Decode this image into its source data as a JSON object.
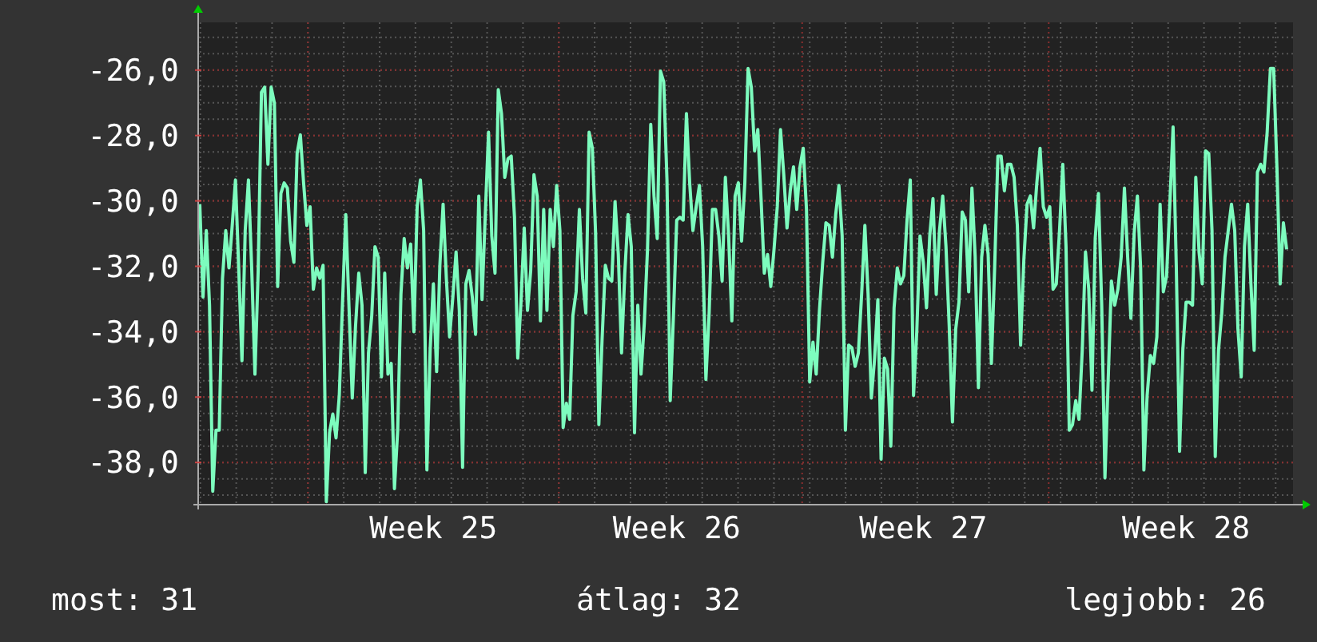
{
  "chart_data": {
    "type": "line",
    "ylim": [
      -39.29,
      -24.54
    ],
    "categories": [
      null,
      null,
      null,
      null,
      null,
      null,
      null,
      null,
      null,
      null,
      null,
      null,
      null,
      null,
      null,
      null,
      null,
      null,
      null,
      null,
      null,
      null,
      null,
      null,
      null,
      null,
      null,
      null,
      null,
      null,
      null,
      null,
      null,
      null,
      null,
      null,
      null,
      null,
      null,
      null,
      null,
      null,
      null,
      null,
      null,
      null,
      null,
      null,
      null,
      null,
      null,
      null,
      null,
      null,
      null,
      null,
      null,
      null,
      null,
      null,
      null,
      null,
      null,
      null,
      null,
      null,
      null,
      null,
      null,
      null,
      null,
      null,
      "Week 25",
      null,
      null,
      null,
      null,
      null,
      null,
      null,
      null,
      null,
      null,
      null,
      null,
      null,
      null,
      null,
      null,
      null,
      null,
      null,
      null,
      null,
      null,
      null,
      null,
      null,
      null,
      null,
      null,
      null,
      null,
      null,
      null,
      null,
      null,
      null,
      null,
      null,
      null,
      null,
      null,
      null,
      null,
      null,
      null,
      null,
      null,
      null,
      null,
      null,
      null,
      null,
      null,
      null,
      null,
      null,
      null,
      null,
      null,
      null,
      null,
      null,
      null,
      null,
      null,
      null,
      null,
      null,
      null,
      null,
      null,
      null,
      null,
      null,
      null,
      "Week 26",
      null,
      null,
      null,
      null,
      null,
      null,
      null,
      null,
      null,
      null,
      null,
      null,
      null,
      null,
      null,
      null,
      null,
      null,
      null,
      null,
      null,
      null,
      null,
      null,
      null,
      null,
      null,
      null,
      null,
      null,
      null,
      null,
      null,
      null,
      null,
      null,
      null,
      null,
      null,
      null,
      null,
      null,
      null,
      null,
      null,
      null,
      null,
      null,
      null,
      null,
      null,
      null,
      null,
      null,
      null,
      null,
      null,
      null,
      null,
      null,
      null,
      null,
      null,
      null,
      null,
      null,
      null,
      null,
      null,
      null,
      null,
      null,
      null,
      null,
      null,
      "Week 27",
      null,
      null,
      null,
      null,
      null,
      null,
      null,
      null,
      null,
      null,
      null,
      null,
      null,
      null,
      null,
      null,
      null,
      null,
      null,
      null,
      null,
      null,
      null,
      null,
      null,
      null,
      null,
      null,
      null,
      null,
      null,
      null,
      null,
      null,
      null,
      null,
      null,
      null,
      null,
      null,
      null,
      null,
      null,
      null,
      null,
      null,
      null,
      null,
      null,
      null,
      null,
      null,
      null,
      null,
      null,
      null,
      null,
      null,
      null,
      null,
      null,
      null,
      null,
      null,
      null,
      null,
      null,
      null,
      null,
      null,
      null,
      null,
      null,
      null,
      null,
      null,
      null,
      null,
      null,
      null,
      "Week 28",
      null,
      null,
      null,
      null,
      null,
      null,
      null,
      null,
      null,
      null,
      null,
      null,
      null,
      null,
      null,
      null,
      null,
      null,
      null,
      null,
      null,
      null,
      null,
      null,
      null,
      null,
      null,
      null,
      null,
      null,
      null
    ],
    "yticks": [
      {
        "value": -38,
        "label": "-38,0"
      },
      {
        "value": -36,
        "label": "-36,0"
      },
      {
        "value": -34,
        "label": "-34,0"
      },
      {
        "value": -32,
        "label": "-32,0"
      },
      {
        "value": -30,
        "label": "-30,0"
      },
      {
        "value": -28,
        "label": "-28,0"
      },
      {
        "value": -26,
        "label": "-26,0"
      }
    ],
    "grid": true,
    "marker": "none",
    "line_style": "solid",
    "annotations": [
      "most: 31",
      "átlag: 32",
      "legjobb: 26"
    ],
    "series": [
      {
        "color": "#7dfcbe",
        "values": [
          -30.1,
          -32.94,
          -30.91,
          -33.19,
          -38.88,
          -37.01,
          -37.01,
          -32.37,
          -30.91,
          -32.05,
          -30.75,
          -29.36,
          -32.05,
          -34.89,
          -30.91,
          -29.36,
          -32.05,
          -35.3,
          -32.13,
          -26.68,
          -26.52,
          -28.88,
          -26.52,
          -27.01,
          -32.62,
          -29.77,
          -29.45,
          -29.61,
          -31.23,
          -31.88,
          -28.55,
          -27.98,
          -29.45,
          -30.75,
          -30.18,
          -32.7,
          -32.05,
          -32.37,
          -31.97,
          -39.2,
          -37.09,
          -36.52,
          -37.25,
          -35.95,
          -33.1,
          -30.42,
          -33.27,
          -36.03,
          -33.84,
          -32.21,
          -33.19,
          -38.31,
          -34.65,
          -33.51,
          -31.4,
          -31.72,
          -35.38,
          -32.21,
          -35.3,
          -34.97,
          -38.8,
          -37.01,
          -32.86,
          -31.15,
          -32.05,
          -31.32,
          -34.0,
          -30.18,
          -29.36,
          -30.91,
          -38.23,
          -34.57,
          -32.54,
          -35.22,
          -31.97,
          -30.1,
          -32.37,
          -34.16,
          -32.94,
          -31.56,
          -33.35,
          -38.15,
          -32.54,
          -32.13,
          -32.94,
          -34.08,
          -29.85,
          -33.02,
          -30.42,
          -27.9,
          -31.07,
          -32.21,
          -26.6,
          -27.33,
          -29.28,
          -28.71,
          -28.63,
          -30.5,
          -34.81,
          -33.1,
          -30.83,
          -33.35,
          -32.13,
          -29.2,
          -29.85,
          -33.67,
          -30.26,
          -33.35,
          -30.26,
          -31.4,
          -29.53,
          -30.91,
          -36.93,
          -36.19,
          -36.68,
          -33.51,
          -32.78,
          -30.26,
          -32.37,
          -33.43,
          -27.9,
          -28.39,
          -30.99,
          -36.84,
          -34.24,
          -31.97,
          -32.37,
          -32.45,
          -30.02,
          -31.64,
          -34.65,
          -32.21,
          -30.42,
          -31.4,
          -37.09,
          -33.19,
          -35.3,
          -33.76,
          -31.48,
          -27.66,
          -29.85,
          -31.15,
          -26.03,
          -26.36,
          -29.36,
          -36.11,
          -33.51,
          -30.59,
          -30.5,
          -30.59,
          -27.33,
          -29.45,
          -30.91,
          -30.18,
          -29.53,
          -31.4,
          -35.46,
          -33.43,
          -30.26,
          -30.26,
          -31.07,
          -32.45,
          -29.28,
          -31.07,
          -33.67,
          -29.85,
          -29.45,
          -31.23,
          -29.45,
          -25.95,
          -26.52,
          -28.47,
          -27.82,
          -29.93,
          -32.21,
          -31.64,
          -32.62,
          -31.48,
          -30.18,
          -27.82,
          -29.2,
          -30.83,
          -29.69,
          -28.96,
          -30.26,
          -28.96,
          -28.39,
          -30.26,
          -35.54,
          -34.32,
          -35.3,
          -33.35,
          -31.88,
          -30.67,
          -30.75,
          -31.72,
          -30.42,
          -29.53,
          -31.07,
          -37.01,
          -34.41,
          -34.49,
          -35.06,
          -34.65,
          -32.86,
          -30.75,
          -32.86,
          -36.03,
          -34.81,
          -33.02,
          -37.9,
          -34.81,
          -35.14,
          -37.5,
          -33.27,
          -32.05,
          -32.54,
          -32.29,
          -30.59,
          -29.36,
          -35.95,
          -34.0,
          -31.07,
          -31.88,
          -33.27,
          -31.07,
          -29.93,
          -32.86,
          -30.91,
          -29.85,
          -31.4,
          -33.84,
          -36.76,
          -33.92,
          -33.1,
          -30.34,
          -30.59,
          -32.78,
          -29.61,
          -31.72,
          -35.71,
          -31.72,
          -30.75,
          -31.64,
          -34.97,
          -32.05,
          -28.63,
          -28.63,
          -29.69,
          -28.88,
          -28.88,
          -29.28,
          -30.75,
          -34.41,
          -31.8,
          -30.1,
          -29.85,
          -30.83,
          -29.45,
          -28.39,
          -30.18,
          -30.5,
          -30.18,
          -32.7,
          -32.54,
          -30.91,
          -28.88,
          -31.4,
          -37.01,
          -36.84,
          -36.11,
          -36.68,
          -34.57,
          -31.56,
          -32.7,
          -35.79,
          -31.15,
          -29.77,
          -33.19,
          -38.47,
          -35.46,
          -32.45,
          -33.19,
          -32.7,
          -31.72,
          -29.61,
          -31.72,
          -33.59,
          -30.99,
          -29.85,
          -32.05,
          -38.23,
          -35.95,
          -34.73,
          -34.97,
          -34.16,
          -30.1,
          -32.78,
          -32.29,
          -30.1,
          -27.74,
          -32.05,
          -37.66,
          -34.57,
          -33.1,
          -33.1,
          -33.19,
          -29.28,
          -31.56,
          -32.54,
          -28.47,
          -28.55,
          -30.91,
          -37.82,
          -34.57,
          -33.43,
          -31.72,
          -30.91,
          -30.1,
          -30.91,
          -33.92,
          -35.38,
          -31.4,
          -30.1,
          -32.54,
          -34.57,
          -29.12,
          -28.88,
          -29.12,
          -27.9,
          -25.95,
          -25.95,
          -28.96,
          -32.54,
          -30.67,
          -31.48
        ]
      }
    ]
  }
}
